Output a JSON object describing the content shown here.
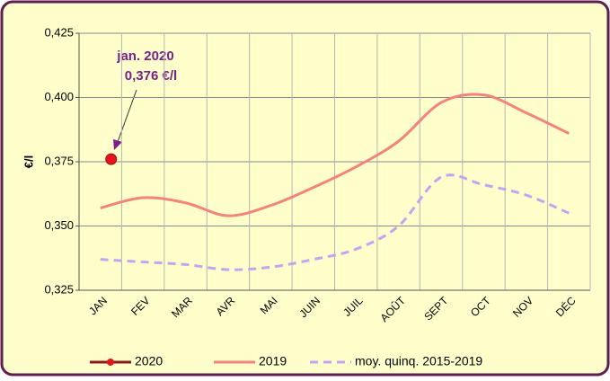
{
  "chart_data": {
    "type": "line",
    "categories": [
      "JAN",
      "FEV",
      "MAR",
      "AVR",
      "MAI",
      "JUIN",
      "JUIL",
      "AOÛT",
      "SEPT",
      "OCT",
      "NOV",
      "DÉC"
    ],
    "series": [
      {
        "name": "2020",
        "color": "#8b1a1a",
        "marker_color": "#e8141c",
        "values": [
          0.376,
          null,
          null,
          null,
          null,
          null,
          null,
          null,
          null,
          null,
          null,
          null
        ]
      },
      {
        "name": "2019",
        "color": "#f4837d",
        "values": [
          0.357,
          0.361,
          0.359,
          0.354,
          0.358,
          0.365,
          0.373,
          0.383,
          0.398,
          0.401,
          0.394,
          0.386
        ]
      },
      {
        "name": "moy. quinq. 2015-2019",
        "color": "#c5a3f2",
        "dashed": true,
        "values": [
          0.337,
          0.336,
          0.335,
          0.333,
          0.334,
          0.337,
          0.341,
          0.35,
          0.369,
          0.366,
          0.362,
          0.355
        ]
      }
    ],
    "y_label": "€/l",
    "ylim": [
      0.325,
      0.425
    ],
    "yticks": [
      {
        "value": 0.325,
        "label": "0,325"
      },
      {
        "value": 0.35,
        "label": "0,350"
      },
      {
        "value": 0.375,
        "label": "0,375"
      },
      {
        "value": 0.4,
        "label": "0,400"
      },
      {
        "value": 0.425,
        "label": "0,425"
      }
    ],
    "grid": true,
    "legend": "bottom",
    "annotation": {
      "line1": "jan. 2020",
      "line2": "0,376 €/l"
    }
  }
}
